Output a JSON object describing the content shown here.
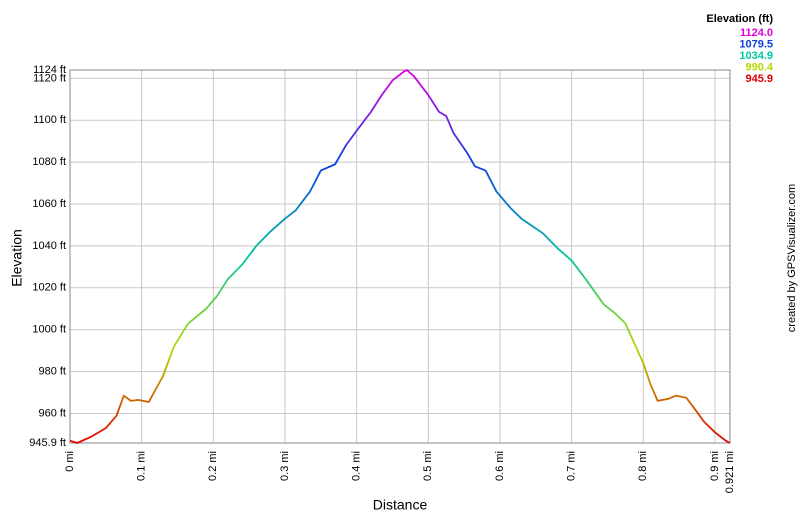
{
  "chart_data": {
    "type": "line",
    "x_label": "Distance",
    "y_label": "Elevation",
    "credit": "created by GPSVisualizer.com",
    "legend_title": "Elevation (ft)",
    "color_scale": [
      {
        "value": 1124.0,
        "label": "1124.0",
        "color": "#e000e0"
      },
      {
        "value": 1079.5,
        "label": "1079.5",
        "color": "#1040e0"
      },
      {
        "value": 1034.9,
        "label": "1034.9",
        "color": "#00c8a0"
      },
      {
        "value": 990.4,
        "label": "990.4",
        "color": "#b8d800"
      },
      {
        "value": 945.9,
        "label": "945.9",
        "color": "#e00000"
      }
    ],
    "grid": true,
    "xlim": [
      0,
      0.921
    ],
    "ylim": [
      945.9,
      1124
    ],
    "xticks": [
      {
        "value": 0,
        "label": "0 mi"
      },
      {
        "value": 0.1,
        "label": "0.1 mi"
      },
      {
        "value": 0.2,
        "label": "0.2 mi"
      },
      {
        "value": 0.3,
        "label": "0.3 mi"
      },
      {
        "value": 0.4,
        "label": "0.4 mi"
      },
      {
        "value": 0.5,
        "label": "0.5 mi"
      },
      {
        "value": 0.6,
        "label": "0.6 mi"
      },
      {
        "value": 0.7,
        "label": "0.7 mi"
      },
      {
        "value": 0.8,
        "label": "0.8 mi"
      },
      {
        "value": 0.9,
        "label": "0.9 mi"
      },
      {
        "value": 0.921,
        "label": "0.921 mi"
      }
    ],
    "yticks": [
      {
        "value": 945.9,
        "label": "945.9 ft"
      },
      {
        "value": 960,
        "label": "960 ft"
      },
      {
        "value": 980,
        "label": "980 ft"
      },
      {
        "value": 1000,
        "label": "1000 ft"
      },
      {
        "value": 1020,
        "label": "1020 ft"
      },
      {
        "value": 1040,
        "label": "1040 ft"
      },
      {
        "value": 1060,
        "label": "1060 ft"
      },
      {
        "value": 1080,
        "label": "1080 ft"
      },
      {
        "value": 1100,
        "label": "1100 ft"
      },
      {
        "value": 1120,
        "label": "1120 ft"
      },
      {
        "value": 1124,
        "label": "1124 ft"
      }
    ],
    "x": [
      0,
      0.01,
      0.03,
      0.05,
      0.065,
      0.075,
      0.085,
      0.095,
      0.11,
      0.13,
      0.145,
      0.165,
      0.19,
      0.205,
      0.22,
      0.24,
      0.26,
      0.28,
      0.3,
      0.315,
      0.335,
      0.35,
      0.37,
      0.385,
      0.4,
      0.42,
      0.435,
      0.45,
      0.465,
      0.47,
      0.48,
      0.5,
      0.515,
      0.525,
      0.535,
      0.555,
      0.565,
      0.58,
      0.595,
      0.615,
      0.63,
      0.66,
      0.68,
      0.7,
      0.72,
      0.745,
      0.76,
      0.775,
      0.8,
      0.81,
      0.82,
      0.835,
      0.845,
      0.86,
      0.87,
      0.885,
      0.9,
      0.915,
      0.921
    ],
    "values": [
      947,
      945.9,
      949,
      953,
      959,
      968.5,
      966,
      966.5,
      965.5,
      978,
      992,
      1003,
      1010,
      1016,
      1024,
      1031,
      1040,
      1047,
      1053,
      1057,
      1066,
      1076,
      1079,
      1088,
      1095,
      1104,
      1112,
      1119,
      1123,
      1124,
      1121,
      1112,
      1104,
      1102,
      1094,
      1084,
      1078,
      1076,
      1066,
      1058,
      1053,
      1046,
      1039,
      1033,
      1024,
      1012,
      1008,
      1003,
      984,
      974,
      966,
      967,
      968.5,
      967.5,
      963,
      956,
      951,
      947,
      945.9
    ]
  }
}
